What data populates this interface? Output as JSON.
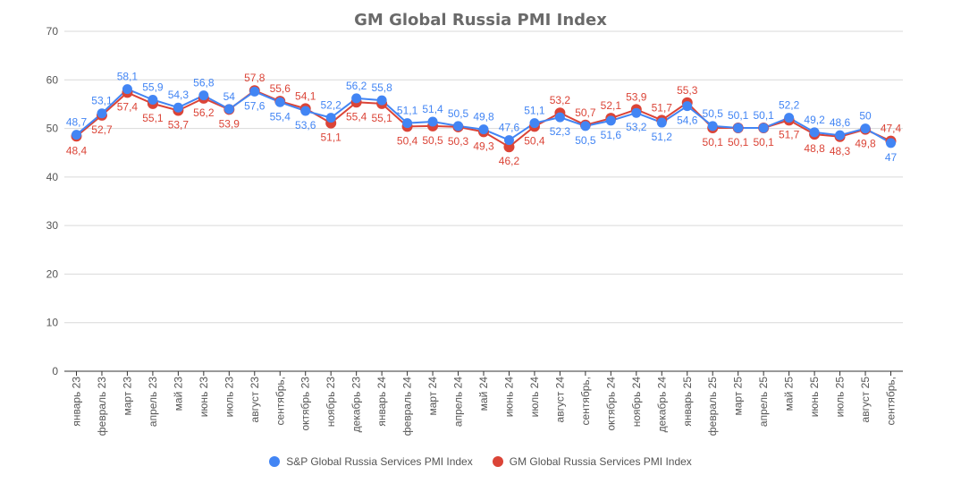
{
  "chart_data": {
    "type": "line",
    "title": "GM Global Russia PMI Index",
    "ylim": [
      0,
      70
    ],
    "yticks": [
      "0",
      "10",
      "20",
      "30",
      "40",
      "50",
      "60",
      "70"
    ],
    "grid": true,
    "legend_position": "bottom",
    "categories": [
      "январь 23",
      "февраль 23",
      "март 23",
      "апрель 23",
      "май 23",
      "июнь 23",
      "июль 23",
      "август 23",
      "сентябрь,",
      "октябрь 23",
      "ноябрь 23",
      "декабрь 23",
      "январь 24",
      "февраль 24",
      "март 24",
      "апрель 24",
      "май 24",
      "июнь 24",
      "июль 24",
      "август 24",
      "сентябрь,",
      "октябрь 24",
      "ноябрь 24",
      "декабрь 24",
      "январь 25",
      "февраль 25",
      "март 25",
      "апрель 25",
      "май 25",
      "июнь 25",
      "июль 25",
      "август 25",
      "сентябрь,"
    ],
    "series": [
      {
        "name": "S&P Global Russia Services PMI Index",
        "color": "#4285f4",
        "values": [
          48.7,
          53.1,
          58.1,
          55.9,
          54.3,
          56.8,
          54,
          57.6,
          55.4,
          53.6,
          52.2,
          56.2,
          55.8,
          51.1,
          51.4,
          50.5,
          49.8,
          47.6,
          51.1,
          52.3,
          50.5,
          51.6,
          53.2,
          51.2,
          54.6,
          50.5,
          50.1,
          50.1,
          52.2,
          49.2,
          48.6,
          50,
          47
        ],
        "labels": [
          "48,7",
          "53,1",
          "58,1",
          "55,9",
          "54,3",
          "56,8",
          "54",
          "57,6",
          "55,4",
          "53,6",
          "52,2",
          "56,2",
          "55,8",
          "51,1",
          "51,4",
          "50,5",
          "49,8",
          "47,6",
          "51,1",
          "52,3",
          "50,5",
          "51,6",
          "53,2",
          "51,2",
          "54,6",
          "50,5",
          "50,1",
          "50,1",
          "52,2",
          "49,2",
          "48,6",
          "50",
          "47"
        ]
      },
      {
        "name": "GM Global Russia Services PMI Index",
        "color": "#db4437",
        "values": [
          48.4,
          52.7,
          57.4,
          55.1,
          53.7,
          56.2,
          53.9,
          57.8,
          55.6,
          54.1,
          51.1,
          55.4,
          55.1,
          50.4,
          50.5,
          50.3,
          49.3,
          46.2,
          50.4,
          53.2,
          50.7,
          52.1,
          53.9,
          51.7,
          55.3,
          50.1,
          50.1,
          50.1,
          51.7,
          48.8,
          48.3,
          49.8,
          47.4
        ],
        "labels": [
          "48,4",
          "52,7",
          "57,4",
          "55,1",
          "53,7",
          "56,2",
          "53,9",
          "57,8",
          "55,6",
          "54,1",
          "51,1",
          "55,4",
          "55,1",
          "50,4",
          "50,5",
          "50,3",
          "49,3",
          "46,2",
          "50,4",
          "53,2",
          "50,7",
          "52,1",
          "53,9",
          "51,7",
          "55,3",
          "50,1",
          "50,1",
          "50,1",
          "51,7",
          "48,8",
          "48,3",
          "49,8",
          "47,4"
        ]
      }
    ]
  }
}
